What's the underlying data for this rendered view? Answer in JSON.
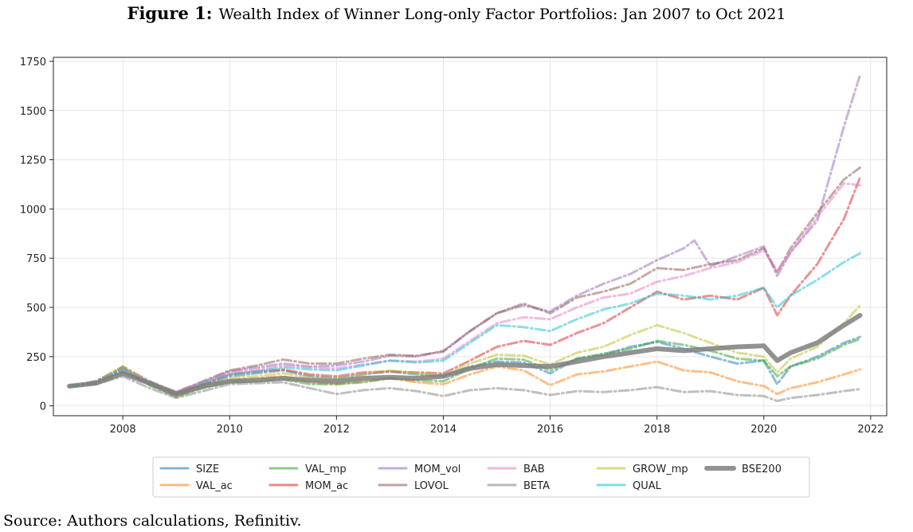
{
  "figure": {
    "number": "Figure 1:",
    "title": "Wealth Index of Winner Long-only Factor Portfolios: Jan 2007 to Oct 2021",
    "source": "Source: Authors calculations, Refinitiv."
  },
  "chart_data": {
    "type": "line",
    "title": "Wealth Index of Winner Long-only Factor Portfolios: Jan 2007 to Oct 2021",
    "xlabel": "",
    "ylabel": "",
    "xlim": [
      2006.7,
      2022.3
    ],
    "ylim": [
      -50,
      1770
    ],
    "xticks": [
      2008,
      2010,
      2012,
      2014,
      2016,
      2018,
      2020,
      2022
    ],
    "yticks": [
      0,
      250,
      500,
      750,
      1000,
      1250,
      1500,
      1750
    ],
    "grid": true,
    "legend_position": "bottom",
    "series": [
      {
        "name": "SIZE",
        "color": "#1f77b4",
        "style": "dashdot",
        "width": 3,
        "x": [
          2007.0,
          2007.5,
          2008.0,
          2008.5,
          2009.0,
          2009.5,
          2010.0,
          2010.5,
          2011.0,
          2011.5,
          2012.0,
          2012.5,
          2013.0,
          2013.5,
          2014.0,
          2014.5,
          2015.0,
          2015.5,
          2016.0,
          2016.5,
          2017.0,
          2017.5,
          2018.0,
          2018.5,
          2019.0,
          2019.5,
          2020.0,
          2020.25,
          2020.5,
          2021.0,
          2021.5,
          2021.8
        ],
        "y": [
          100,
          120,
          175,
          110,
          60,
          105,
          150,
          165,
          180,
          150,
          140,
          160,
          175,
          160,
          150,
          200,
          225,
          220,
          165,
          240,
          260,
          300,
          325,
          290,
          250,
          215,
          230,
          110,
          200,
          250,
          320,
          350
        ]
      },
      {
        "name": "VAL_ac",
        "color": "#ff7f0e",
        "style": "dashdot",
        "width": 3,
        "x": [
          2007.0,
          2007.5,
          2008.0,
          2008.5,
          2009.0,
          2009.5,
          2010.0,
          2010.5,
          2011.0,
          2011.5,
          2012.0,
          2012.5,
          2013.0,
          2013.5,
          2014.0,
          2014.5,
          2015.0,
          2015.5,
          2016.0,
          2016.5,
          2017.0,
          2017.5,
          2018.0,
          2018.5,
          2019.0,
          2019.5,
          2020.0,
          2020.25,
          2020.5,
          2021.0,
          2021.5,
          2021.8
        ],
        "y": [
          100,
          120,
          190,
          110,
          50,
          95,
          130,
          140,
          150,
          120,
          110,
          125,
          140,
          120,
          110,
          160,
          200,
          180,
          105,
          160,
          175,
          200,
          225,
          180,
          170,
          125,
          100,
          60,
          90,
          120,
          160,
          185
        ]
      },
      {
        "name": "VAL_mp",
        "color": "#2ca02c",
        "style": "dashdot",
        "width": 3,
        "x": [
          2007.0,
          2007.5,
          2008.0,
          2008.5,
          2009.0,
          2009.5,
          2010.0,
          2010.5,
          2011.0,
          2011.5,
          2012.0,
          2012.5,
          2013.0,
          2013.5,
          2014.0,
          2014.5,
          2015.0,
          2015.5,
          2016.0,
          2016.5,
          2017.0,
          2017.5,
          2018.0,
          2018.5,
          2019.0,
          2019.5,
          2020.0,
          2020.25,
          2020.5,
          2021.0,
          2021.5,
          2021.8
        ],
        "y": [
          100,
          115,
          195,
          105,
          45,
          90,
          120,
          125,
          135,
          110,
          110,
          120,
          140,
          130,
          125,
          190,
          240,
          235,
          180,
          240,
          265,
          290,
          330,
          310,
          280,
          240,
          230,
          150,
          200,
          240,
          310,
          340
        ]
      },
      {
        "name": "MOM_ac",
        "color": "#d62728",
        "style": "dashdot",
        "width": 3,
        "x": [
          2007.0,
          2007.5,
          2008.0,
          2008.5,
          2009.0,
          2009.5,
          2010.0,
          2010.5,
          2011.0,
          2011.5,
          2012.0,
          2012.5,
          2013.0,
          2013.5,
          2014.0,
          2014.5,
          2015.0,
          2015.5,
          2016.0,
          2016.5,
          2017.0,
          2017.5,
          2018.0,
          2018.5,
          2019.0,
          2019.5,
          2020.0,
          2020.25,
          2020.5,
          2021.0,
          2021.5,
          2021.8
        ],
        "y": [
          100,
          120,
          170,
          115,
          60,
          110,
          160,
          175,
          185,
          160,
          150,
          170,
          175,
          170,
          165,
          230,
          300,
          330,
          310,
          370,
          420,
          500,
          580,
          540,
          560,
          540,
          600,
          460,
          560,
          720,
          950,
          1160
        ]
      },
      {
        "name": "MOM_vol",
        "color": "#9467bd",
        "style": "dashdot",
        "width": 3,
        "x": [
          2007.0,
          2007.5,
          2008.0,
          2008.5,
          2009.0,
          2009.5,
          2010.0,
          2010.5,
          2011.0,
          2011.5,
          2012.0,
          2012.5,
          2013.0,
          2013.5,
          2014.0,
          2014.5,
          2015.0,
          2015.5,
          2016.0,
          2016.5,
          2017.0,
          2017.5,
          2018.0,
          2018.5,
          2018.7,
          2019.0,
          2019.5,
          2020.0,
          2020.25,
          2020.5,
          2021.0,
          2021.5,
          2021.8
        ],
        "y": [
          100,
          125,
          190,
          120,
          70,
          120,
          175,
          195,
          215,
          200,
          205,
          225,
          255,
          250,
          280,
          380,
          470,
          510,
          480,
          560,
          620,
          670,
          740,
          800,
          840,
          710,
          760,
          810,
          660,
          780,
          940,
          1420,
          1680
        ]
      },
      {
        "name": "LOVOL",
        "color": "#8c564b",
        "style": "dashdot",
        "width": 3,
        "x": [
          2007.0,
          2007.5,
          2008.0,
          2008.5,
          2009.0,
          2009.5,
          2010.0,
          2010.5,
          2011.0,
          2011.5,
          2012.0,
          2012.5,
          2013.0,
          2013.5,
          2014.0,
          2014.5,
          2015.0,
          2015.5,
          2016.0,
          2016.5,
          2017.0,
          2017.5,
          2018.0,
          2018.5,
          2019.0,
          2019.5,
          2020.0,
          2020.25,
          2020.5,
          2021.0,
          2021.5,
          2021.8
        ],
        "y": [
          100,
          125,
          200,
          125,
          70,
          125,
          180,
          205,
          235,
          215,
          215,
          240,
          260,
          255,
          275,
          380,
          470,
          520,
          470,
          550,
          580,
          620,
          700,
          690,
          720,
          740,
          800,
          680,
          800,
          980,
          1150,
          1210
        ]
      },
      {
        "name": "BAB",
        "color": "#e377c2",
        "style": "dashdot",
        "width": 3,
        "x": [
          2007.0,
          2007.5,
          2008.0,
          2008.5,
          2009.0,
          2009.5,
          2010.0,
          2010.5,
          2011.0,
          2011.5,
          2012.0,
          2012.5,
          2013.0,
          2013.5,
          2014.0,
          2014.5,
          2015.0,
          2015.5,
          2016.0,
          2016.5,
          2017.0,
          2017.5,
          2018.0,
          2018.5,
          2019.0,
          2019.5,
          2020.0,
          2020.25,
          2020.5,
          2021.0,
          2021.5,
          2021.8
        ],
        "y": [
          100,
          120,
          190,
          120,
          70,
          120,
          170,
          185,
          205,
          195,
          190,
          210,
          230,
          225,
          240,
          330,
          420,
          450,
          440,
          500,
          550,
          570,
          630,
          660,
          700,
          730,
          790,
          680,
          780,
          960,
          1130,
          1120
        ]
      },
      {
        "name": "BETA",
        "color": "#7f7f7f",
        "style": "dashdot",
        "width": 3,
        "x": [
          2007.0,
          2007.5,
          2008.0,
          2008.5,
          2009.0,
          2009.5,
          2010.0,
          2010.5,
          2011.0,
          2011.5,
          2012.0,
          2012.5,
          2013.0,
          2013.5,
          2014.0,
          2014.5,
          2015.0,
          2015.5,
          2016.0,
          2016.5,
          2017.0,
          2017.5,
          2018.0,
          2018.5,
          2019.0,
          2019.5,
          2020.0,
          2020.25,
          2020.5,
          2021.0,
          2021.5,
          2021.8
        ],
        "y": [
          100,
          110,
          150,
          90,
          40,
          75,
          110,
          115,
          120,
          90,
          60,
          80,
          90,
          75,
          50,
          80,
          90,
          80,
          55,
          75,
          70,
          80,
          95,
          70,
          75,
          55,
          50,
          25,
          40,
          55,
          75,
          85
        ]
      },
      {
        "name": "GROW_mp",
        "color": "#bcbd22",
        "style": "dashdot",
        "width": 3,
        "x": [
          2007.0,
          2007.5,
          2008.0,
          2008.5,
          2009.0,
          2009.5,
          2010.0,
          2010.5,
          2011.0,
          2011.5,
          2012.0,
          2012.5,
          2013.0,
          2013.5,
          2014.0,
          2014.5,
          2015.0,
          2015.5,
          2016.0,
          2016.5,
          2017.0,
          2017.5,
          2018.0,
          2018.5,
          2019.0,
          2019.5,
          2020.0,
          2020.25,
          2020.5,
          2021.0,
          2021.5,
          2021.8
        ],
        "y": [
          100,
          120,
          200,
          115,
          55,
          100,
          140,
          150,
          165,
          145,
          140,
          160,
          180,
          165,
          155,
          215,
          260,
          255,
          210,
          270,
          300,
          360,
          410,
          370,
          320,
          270,
          250,
          170,
          240,
          300,
          420,
          510
        ]
      },
      {
        "name": "QUAL",
        "color": "#17becf",
        "style": "dashdot",
        "width": 3,
        "x": [
          2007.0,
          2007.5,
          2008.0,
          2008.5,
          2009.0,
          2009.5,
          2010.0,
          2010.5,
          2011.0,
          2011.5,
          2012.0,
          2012.5,
          2013.0,
          2013.5,
          2014.0,
          2014.5,
          2015.0,
          2015.5,
          2016.0,
          2016.5,
          2017.0,
          2017.5,
          2018.0,
          2018.5,
          2019.0,
          2019.5,
          2020.0,
          2020.25,
          2020.5,
          2021.0,
          2021.5,
          2021.8
        ],
        "y": [
          100,
          120,
          185,
          115,
          60,
          115,
          160,
          175,
          195,
          185,
          180,
          205,
          230,
          220,
          230,
          320,
          410,
          400,
          380,
          440,
          490,
          520,
          570,
          560,
          540,
          560,
          600,
          500,
          560,
          640,
          730,
          775
        ]
      },
      {
        "name": "BSE200",
        "color": "#7f7f7f",
        "style": "solid",
        "width": 6,
        "x": [
          2007.0,
          2007.5,
          2008.0,
          2008.5,
          2009.0,
          2009.5,
          2010.0,
          2010.5,
          2011.0,
          2011.5,
          2012.0,
          2012.5,
          2013.0,
          2013.5,
          2014.0,
          2014.5,
          2015.0,
          2015.5,
          2016.0,
          2016.5,
          2017.0,
          2017.5,
          2018.0,
          2018.5,
          2019.0,
          2019.5,
          2020.0,
          2020.25,
          2020.5,
          2021.0,
          2021.5,
          2021.8
        ],
        "y": [
          100,
          115,
          165,
          115,
          60,
          100,
          125,
          130,
          140,
          130,
          125,
          140,
          145,
          140,
          150,
          190,
          210,
          205,
          200,
          225,
          250,
          270,
          290,
          280,
          290,
          300,
          305,
          230,
          270,
          320,
          410,
          460
        ]
      }
    ]
  }
}
